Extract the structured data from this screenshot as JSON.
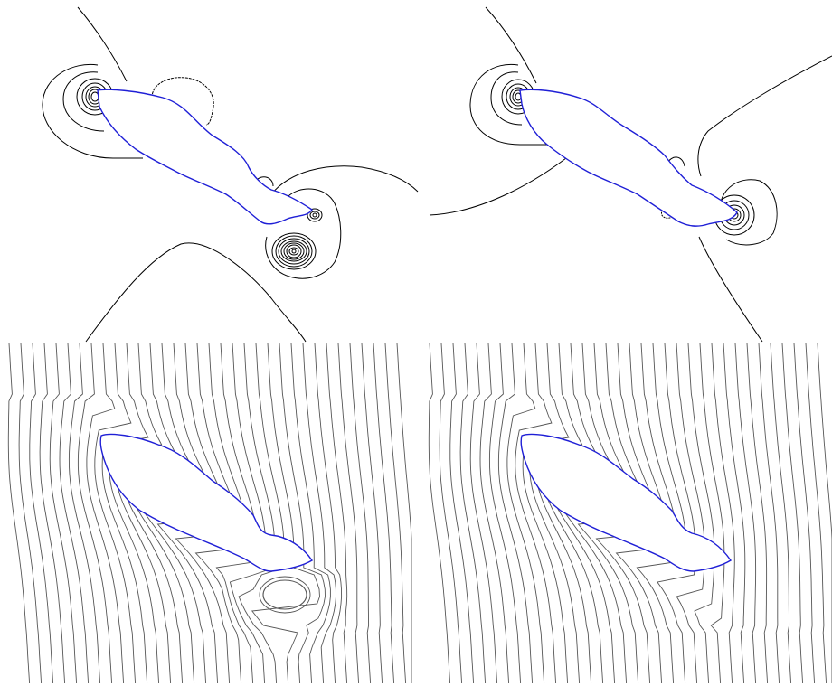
{
  "figure": {
    "panels": [
      {
        "id": "top-left",
        "kind": "vorticity-contours",
        "body_outline_color": "#1f1fd6",
        "contour_color": "#000000"
      },
      {
        "id": "top-right",
        "kind": "vorticity-contours",
        "body_outline_color": "#1f1fd6",
        "contour_color": "#000000"
      },
      {
        "id": "bottom-left",
        "kind": "streamlines",
        "body_outline_color": "#1f1fd6",
        "streamline_color": "#555555"
      },
      {
        "id": "bottom-right",
        "kind": "streamlines",
        "body_outline_color": "#1f1fd6",
        "streamline_color": "#555555"
      }
    ],
    "colors": {
      "body": "#1f1fd6",
      "contour": "#000000",
      "streamline": "#555555",
      "background": "#ffffff"
    }
  }
}
